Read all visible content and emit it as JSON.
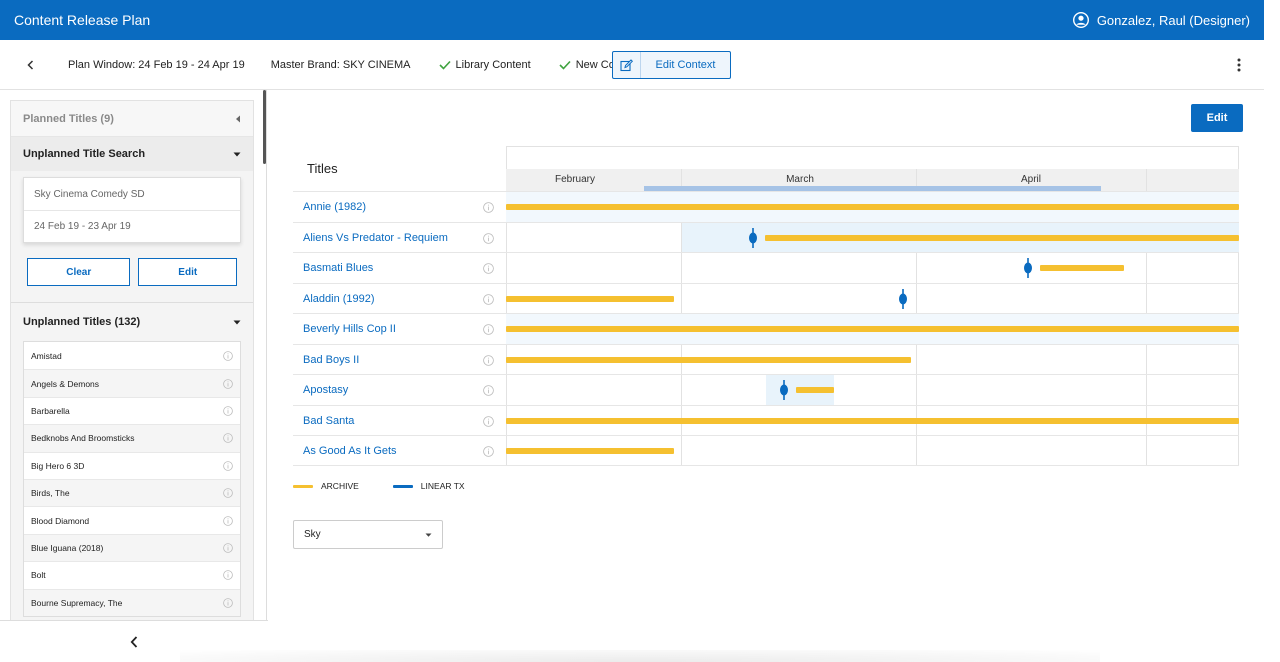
{
  "header": {
    "title": "Content Release Plan",
    "user": "Gonzalez, Raul (Designer)"
  },
  "context": {
    "plan_window": "Plan Window: 24 Feb 19 - 24 Apr 19",
    "master_brand": "Master Brand: SKY CINEMA",
    "library_content": "Library Content",
    "new_content": "New Content",
    "edit_context": "Edit Context"
  },
  "sidebar": {
    "planned_titles": "Planned Titles (9)",
    "unplanned_search": "Unplanned Title Search",
    "search_channel": "Sky Cinema Comedy SD",
    "search_dates": "24 Feb 19 - 23 Apr 19",
    "clear_label": "Clear",
    "edit_label": "Edit",
    "unplanned_titles": "Unplanned Titles (132)",
    "items": [
      "Amistad",
      "Angels & Demons",
      "Barbarella",
      "Bedknobs And Broomsticks",
      "Big Hero 6 3D",
      "Birds, The",
      "Blood Diamond",
      "Blue Iguana (2018)",
      "Bolt",
      "Bourne Supremacy, The"
    ]
  },
  "main": {
    "edit_label": "Edit",
    "titles_heading": "Titles",
    "months": [
      "February",
      "March",
      "April"
    ],
    "rows": [
      "Annie (1982)",
      "Aliens Vs Predator - Requiem",
      "Basmati Blues",
      "Aladdin (1992)",
      "Beverly Hills Cop II",
      "Bad Boys II",
      "Apostasy",
      "Bad Santa",
      "As Good As It Gets"
    ],
    "legend": {
      "archive": "ARCHIVE",
      "linear": "LINEAR TX"
    },
    "brand_select": "Sky"
  },
  "colors": {
    "brand": "#0a6bc0",
    "archive": "#f5c030",
    "linear": "#0a6bc0",
    "window": "#a6c3e6"
  }
}
